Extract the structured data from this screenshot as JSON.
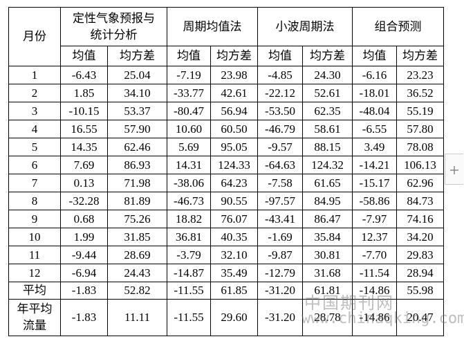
{
  "table": {
    "header": {
      "month": "月份",
      "methods": [
        {
          "name": "定性气象预报与\n统计分析",
          "sub": [
            "均值",
            "均方差"
          ]
        },
        {
          "name": "周期均值法",
          "sub": [
            "均值",
            "均方差"
          ]
        },
        {
          "name": "小波周期法",
          "sub": [
            "均值",
            "均方差"
          ]
        },
        {
          "name": "组合预测",
          "sub": [
            "均值",
            "均方差"
          ]
        }
      ]
    },
    "rows": [
      {
        "label": "1",
        "cells": [
          "-6.43",
          "25.04",
          "-7.19",
          "23.98",
          "-4.85",
          "24.30",
          "-6.16",
          "23.23"
        ]
      },
      {
        "label": "2",
        "cells": [
          "1.85",
          "34.10",
          "-33.77",
          "42.61",
          "-22.12",
          "52.61",
          "-18.01",
          "36.52"
        ]
      },
      {
        "label": "3",
        "cells": [
          "-10.15",
          "53.37",
          "-80.47",
          "56.94",
          "-53.50",
          "62.35",
          "-48.04",
          "55.19"
        ]
      },
      {
        "label": "4",
        "cells": [
          "16.55",
          "57.90",
          "10.60",
          "60.50",
          "-46.79",
          "58.61",
          "-6.55",
          "57.80"
        ]
      },
      {
        "label": "5",
        "cells": [
          "14.35",
          "62.46",
          "5.69",
          "95.05",
          "-9.57",
          "88.15",
          "3.49",
          "78.08"
        ]
      },
      {
        "label": "6",
        "cells": [
          "7.69",
          "86.93",
          "14.31",
          "124.33",
          "-64.63",
          "124.32",
          "-14.21",
          "106.13"
        ]
      },
      {
        "label": "7",
        "cells": [
          "0.13",
          "71.98",
          "-38.06",
          "64.23",
          "-7.58",
          "61.65",
          "-15.17",
          "62.96"
        ]
      },
      {
        "label": "8",
        "cells": [
          "-32.28",
          "81.89",
          "-46.73",
          "90.55",
          "-97.57",
          "84.95",
          "-58.86",
          "84.73"
        ]
      },
      {
        "label": "9",
        "cells": [
          "0.68",
          "75.26",
          "18.82",
          "76.07",
          "-43.41",
          "86.47",
          "-7.97",
          "74.16"
        ]
      },
      {
        "label": "10",
        "cells": [
          "1.99",
          "31.85",
          "36.81",
          "40.35",
          "-1.69",
          "35.84",
          "12.37",
          "34.20"
        ]
      },
      {
        "label": "11",
        "cells": [
          "-9.44",
          "28.69",
          "-3.79",
          "32.10",
          "-9.87",
          "30.81",
          "-7.70",
          "29.83"
        ]
      },
      {
        "label": "12",
        "cells": [
          "-6.94",
          "24.43",
          "-14.87",
          "35.49",
          "-12.79",
          "31.68",
          "-11.54",
          "28.94"
        ]
      },
      {
        "label": "平均",
        "cells": [
          "-1.83",
          "52.82",
          "-11.55",
          "61.85",
          "-31.20",
          "61.81",
          "-14.86",
          "55.98"
        ]
      },
      {
        "label": "年平均\n流量",
        "cells": [
          "-1.83",
          "11.11",
          "-11.55",
          "29.60",
          "-31.20",
          "28.78",
          "-14.86",
          "20.47"
        ]
      }
    ]
  },
  "watermark": {
    "name": "中国期刊网",
    "url": "www.chinaqking.com"
  }
}
